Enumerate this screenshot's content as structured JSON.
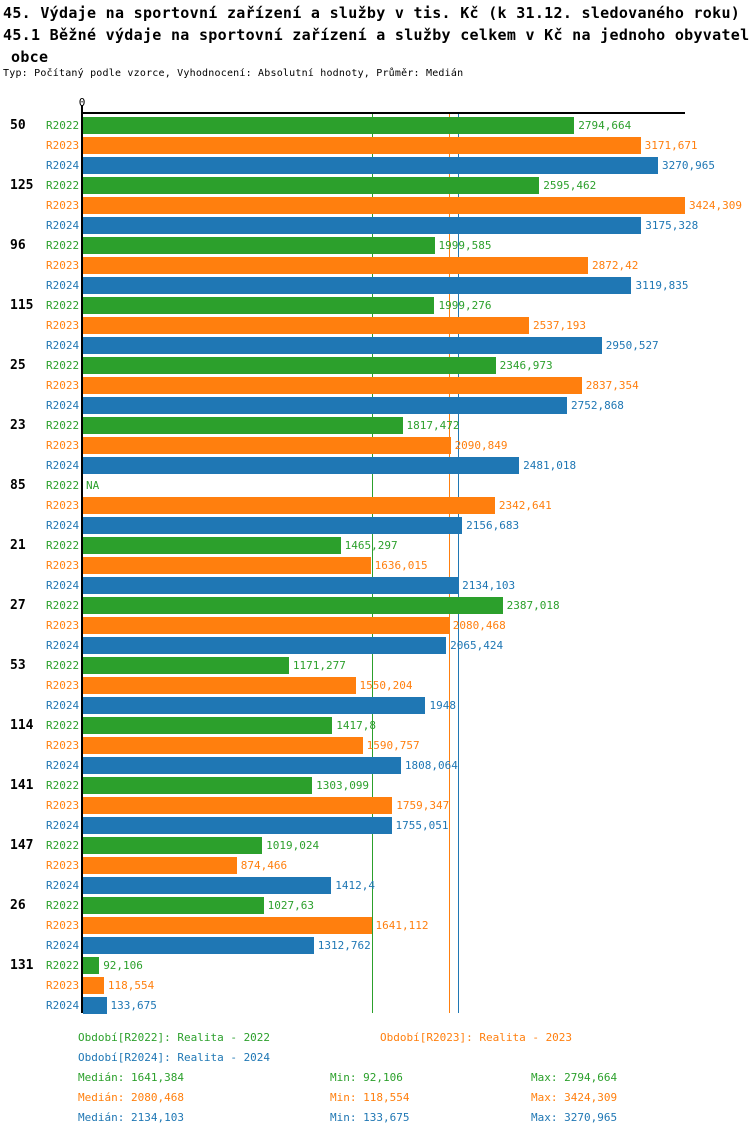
{
  "header": {
    "title": "45. Výdaje na sportovní zařízení a služby v tis. Kč (k 31.12. sledovaného roku)",
    "subtitle": "45.1 Běžné výdaje na sportovní zařízení a služby celkem v Kč na jednoho obyvatele",
    "subtitle2": "obce",
    "type_note": "Typ: Počítaný podle vzorce, Vyhodnocení: Absolutní hodnoty, Průměr: Medián"
  },
  "colors": {
    "r2022": "#2ca02c",
    "r2023": "#ff7f0e",
    "r2024": "#1f77b4",
    "axis": "#000000"
  },
  "axis": {
    "zero_label": "0"
  },
  "chart_data": {
    "type": "bar",
    "orientation": "horizontal",
    "xlim": [
      0,
      3424.309
    ],
    "axis_max": 3424.309,
    "grid": false,
    "legend_position": "bottom",
    "series": [
      {
        "name": "R2022",
        "color": "#2ca02c"
      },
      {
        "name": "R2023",
        "color": "#ff7f0e"
      },
      {
        "name": "R2024",
        "color": "#1f77b4"
      }
    ],
    "ref_lines": [
      {
        "series": "R2022",
        "label": "Medián 2022",
        "value": 1641.384,
        "color": "#2ca02c"
      },
      {
        "series": "R2023",
        "label": "Medián 2023",
        "value": 2080.468,
        "color": "#ff7f0e"
      },
      {
        "series": "R2024",
        "label": "Medián 2024",
        "value": 2134.103,
        "color": "#1f77b4"
      }
    ],
    "groups": [
      {
        "label": "50",
        "bars": [
          {
            "value": 2794.664,
            "display": "2794,664"
          },
          {
            "value": 3171.671,
            "display": "3171,671"
          },
          {
            "value": 3270.965,
            "display": "3270,965"
          }
        ]
      },
      {
        "label": "125",
        "bars": [
          {
            "value": 2595.462,
            "display": "2595,462"
          },
          {
            "value": 3424.309,
            "display": "3424,309"
          },
          {
            "value": 3175.328,
            "display": "3175,328"
          }
        ]
      },
      {
        "label": "96",
        "bars": [
          {
            "value": 1999.585,
            "display": "1999,585"
          },
          {
            "value": 2872.42,
            "display": "2872,42"
          },
          {
            "value": 3119.835,
            "display": "3119,835"
          }
        ]
      },
      {
        "label": "115",
        "bars": [
          {
            "value": 1999.276,
            "display": "1999,276"
          },
          {
            "value": 2537.193,
            "display": "2537,193"
          },
          {
            "value": 2950.527,
            "display": "2950,527"
          }
        ]
      },
      {
        "label": "25",
        "bars": [
          {
            "value": 2346.973,
            "display": "2346,973"
          },
          {
            "value": 2837.354,
            "display": "2837,354"
          },
          {
            "value": 2752.868,
            "display": "2752,868"
          }
        ]
      },
      {
        "label": "23",
        "bars": [
          {
            "value": 1817.472,
            "display": "1817,472"
          },
          {
            "value": 2090.849,
            "display": "2090,849"
          },
          {
            "value": 2481.018,
            "display": "2481,018"
          }
        ]
      },
      {
        "label": "85",
        "bars": [
          {
            "value": null,
            "display": "NA"
          },
          {
            "value": 2342.641,
            "display": "2342,641"
          },
          {
            "value": 2156.683,
            "display": "2156,683"
          }
        ]
      },
      {
        "label": "21",
        "bars": [
          {
            "value": 1465.297,
            "display": "1465,297"
          },
          {
            "value": 1636.015,
            "display": "1636,015"
          },
          {
            "value": 2134.103,
            "display": "2134,103"
          }
        ]
      },
      {
        "label": "27",
        "bars": [
          {
            "value": 2387.018,
            "display": "2387,018"
          },
          {
            "value": 2080.468,
            "display": "2080,468"
          },
          {
            "value": 2065.424,
            "display": "2065,424"
          }
        ]
      },
      {
        "label": "53",
        "bars": [
          {
            "value": 1171.277,
            "display": "1171,277"
          },
          {
            "value": 1550.204,
            "display": "1550,204"
          },
          {
            "value": 1948,
            "display": "1948"
          }
        ]
      },
      {
        "label": "114",
        "bars": [
          {
            "value": 1417.8,
            "display": "1417,8"
          },
          {
            "value": 1590.757,
            "display": "1590,757"
          },
          {
            "value": 1808.064,
            "display": "1808,064"
          }
        ]
      },
      {
        "label": "141",
        "bars": [
          {
            "value": 1303.099,
            "display": "1303,099"
          },
          {
            "value": 1759.347,
            "display": "1759,347"
          },
          {
            "value": 1755.051,
            "display": "1755,051"
          }
        ]
      },
      {
        "label": "147",
        "bars": [
          {
            "value": 1019.024,
            "display": "1019,024"
          },
          {
            "value": 874.466,
            "display": "874,466"
          },
          {
            "value": 1412.4,
            "display": "1412,4"
          }
        ]
      },
      {
        "label": "26",
        "bars": [
          {
            "value": 1027.63,
            "display": "1027,63"
          },
          {
            "value": 1641.112,
            "display": "1641,112"
          },
          {
            "value": 1312.762,
            "display": "1312,762"
          }
        ]
      },
      {
        "label": "131",
        "bars": [
          {
            "value": 92.106,
            "display": "92,106"
          },
          {
            "value": 118.554,
            "display": "118,554"
          },
          {
            "value": 133.675,
            "display": "133,675"
          }
        ]
      }
    ]
  },
  "legend": {
    "periods": [
      {
        "label": "Období[R2022]: Realita - 2022",
        "color": "#2ca02c"
      },
      {
        "label": "Období[R2023]: Realita - 2023",
        "color": "#ff7f0e"
      },
      {
        "label": "Období[R2024]: Realita - 2024",
        "color": "#1f77b4"
      }
    ],
    "stats": [
      {
        "color": "#2ca02c",
        "median": "Medián: 1641,384",
        "min": "Min: 92,106",
        "max": "Max: 2794,664"
      },
      {
        "color": "#ff7f0e",
        "median": "Medián: 2080,468",
        "min": "Min: 118,554",
        "max": "Max: 3424,309"
      },
      {
        "color": "#1f77b4",
        "median": "Medián: 2134,103",
        "min": "Min: 133,675",
        "max": "Max: 3270,965"
      }
    ]
  }
}
